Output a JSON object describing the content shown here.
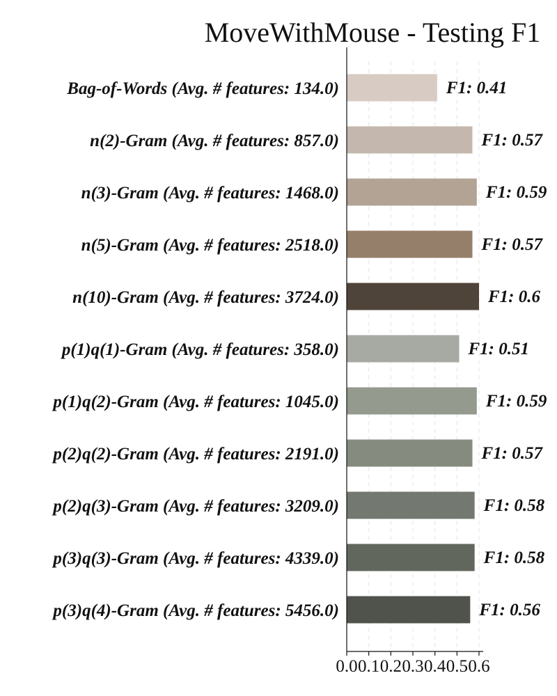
{
  "chart_data": {
    "type": "bar",
    "orientation": "horizontal",
    "title": "MoveWithMouse - Testing F1",
    "xlabel": "",
    "ylabel": "",
    "xlim": [
      0,
      0.6
    ],
    "grid": "vertical dashed",
    "legend": "none",
    "categories": [
      "Bag-of-Words (Avg. # features: 134.0)",
      "n(2)-Gram (Avg. # features: 857.0)",
      "n(3)-Gram (Avg. # features: 1468.0)",
      "n(5)-Gram (Avg. # features: 2518.0)",
      "n(10)-Gram (Avg. # features: 3724.0)",
      "p(1)q(1)-Gram (Avg. # features: 358.0)",
      "p(1)q(2)-Gram (Avg. # features: 1045.0)",
      "p(2)q(2)-Gram (Avg. # features: 2191.0)",
      "p(2)q(3)-Gram (Avg. # features: 3209.0)",
      "p(3)q(3)-Gram (Avg. # features: 4339.0)",
      "p(3)q(4)-Gram (Avg. # features: 5456.0)"
    ],
    "values": [
      0.41,
      0.57,
      0.59,
      0.57,
      0.6,
      0.51,
      0.59,
      0.57,
      0.58,
      0.58,
      0.56
    ],
    "value_labels": [
      "F1: 0.41",
      "F1: 0.57",
      "F1: 0.59",
      "F1: 0.57",
      "F1: 0.6",
      "F1: 0.51",
      "F1: 0.59",
      "F1: 0.57",
      "F1: 0.58",
      "F1: 0.58",
      "F1: 0.56"
    ],
    "colors": [
      "#d7cbc3",
      "#c4b8ae",
      "#b2a394",
      "#967f6a",
      "#4f4439",
      "#a7aaa3",
      "#959a8f",
      "#868b80",
      "#737870",
      "#62675e",
      "#50534c"
    ],
    "xticks": [
      0.0,
      0.1,
      0.2,
      0.3,
      0.4,
      0.5,
      0.6
    ],
    "xtick_labels": [
      "0.0",
      "0.1",
      "0.2",
      "0.3",
      "0.4",
      "0.5",
      "0.6"
    ]
  }
}
